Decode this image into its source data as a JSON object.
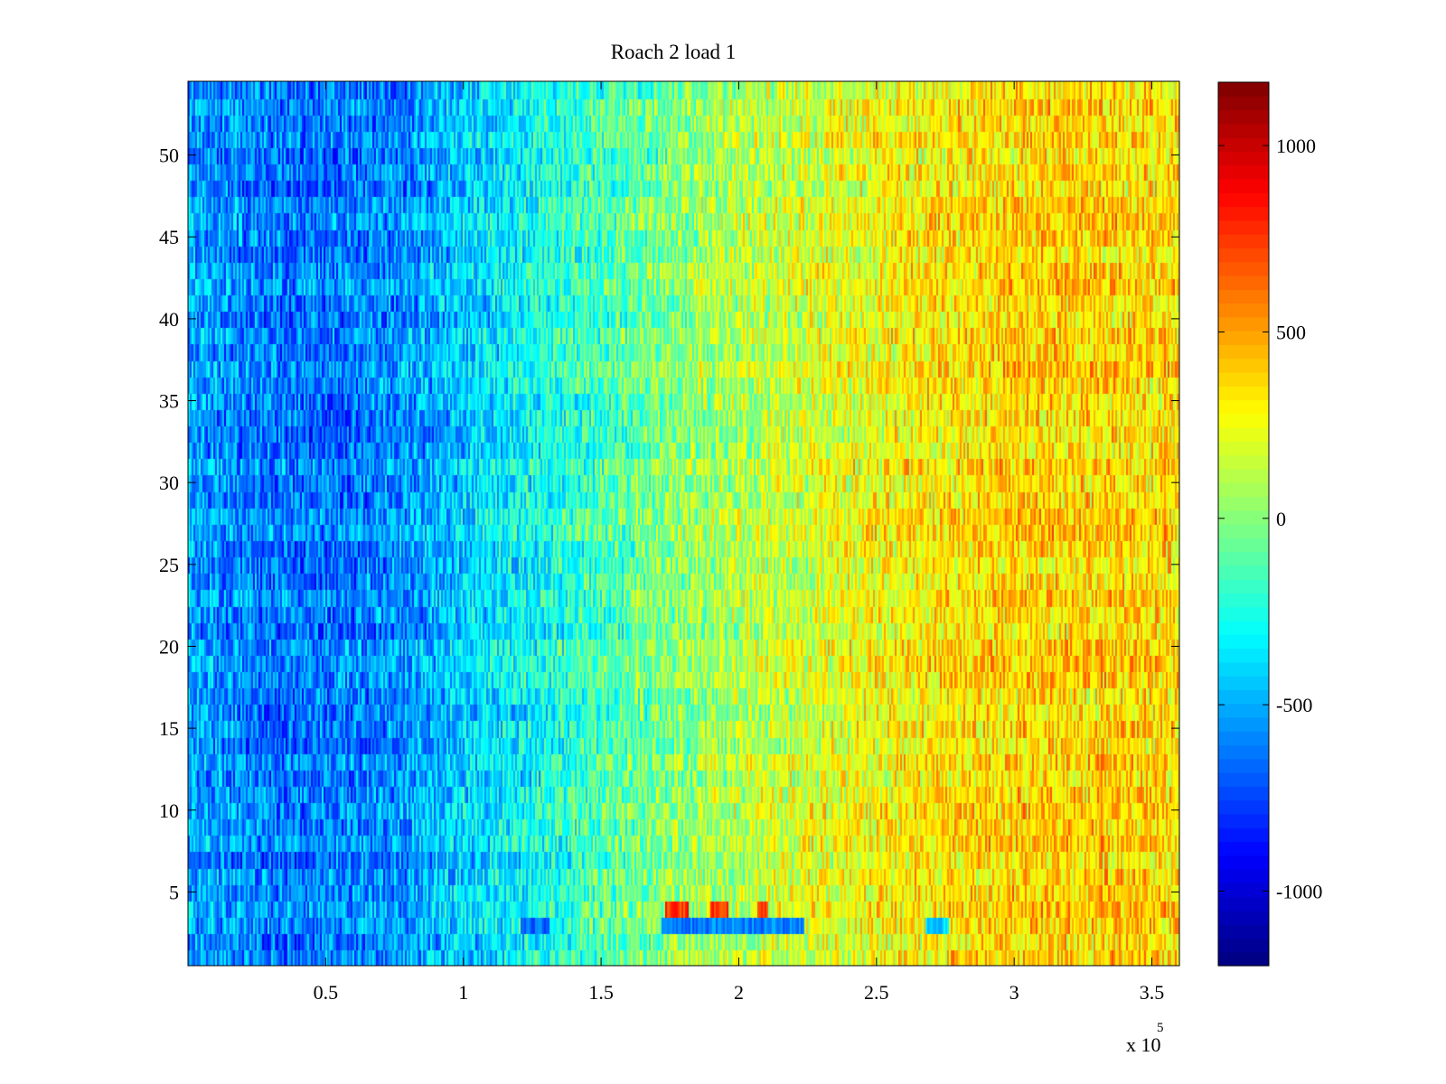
{
  "chart_data": {
    "type": "heatmap",
    "title": "Roach 2 load 1",
    "xlabel": "",
    "ylabel": "",
    "x_exponent_label": "x 10",
    "x_exponent_power": "5",
    "xlim": [
      0,
      360000
    ],
    "ylim": [
      0.5,
      54.5
    ],
    "x_ticks": [
      50000,
      100000,
      150000,
      200000,
      250000,
      300000,
      350000
    ],
    "x_tick_labels": [
      "0.5",
      "1",
      "1.5",
      "2",
      "2.5",
      "3",
      "3.5"
    ],
    "y_ticks": [
      5,
      10,
      15,
      20,
      25,
      30,
      35,
      40,
      45,
      50
    ],
    "y_tick_labels": [
      "5",
      "10",
      "15",
      "20",
      "25",
      "30",
      "35",
      "40",
      "45",
      "50"
    ],
    "rows": 54,
    "colorbar": {
      "clim": [
        -1200,
        1170
      ],
      "ticks": [
        -1000,
        -500,
        0,
        500,
        1000
      ],
      "tick_labels": [
        "-1000",
        "-500",
        "0",
        "500",
        "1000"
      ],
      "colormap": "jet"
    },
    "trend": {
      "x": [
        0,
        20000,
        40000,
        60000,
        80000,
        100000,
        120000,
        140000,
        160000,
        180000,
        200000,
        220000,
        240000,
        260000,
        280000,
        300000,
        320000,
        340000,
        360000
      ],
      "value": [
        -520,
        -600,
        -640,
        -620,
        -560,
        -430,
        -320,
        -200,
        -90,
        20,
        100,
        170,
        230,
        290,
        330,
        370,
        380,
        370,
        350
      ]
    },
    "anomalies": [
      {
        "row": 3,
        "x_start": 121000,
        "x_end": 131000,
        "value": -650
      },
      {
        "row": 3,
        "x_start": 172000,
        "x_end": 224000,
        "value": -600
      },
      {
        "row": 3,
        "x_start": 268000,
        "x_end": 276000,
        "value": -400
      },
      {
        "row": 4,
        "x_start": 173000,
        "x_end": 182000,
        "value": 750
      },
      {
        "row": 4,
        "x_start": 190000,
        "x_end": 196000,
        "value": 750
      },
      {
        "row": 4,
        "x_start": 207000,
        "x_end": 211000,
        "value": 750
      }
    ]
  }
}
